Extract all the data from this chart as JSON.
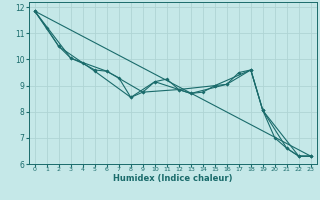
{
  "xlabel": "Humidex (Indice chaleur)",
  "bg_color": "#c5e8e8",
  "grid_color": "#afd4d4",
  "line_color": "#1a6b6b",
  "xlim": [
    -0.5,
    23.5
  ],
  "ylim": [
    6,
    12.2
  ],
  "xticks": [
    0,
    1,
    2,
    3,
    4,
    5,
    6,
    7,
    8,
    9,
    10,
    11,
    12,
    13,
    14,
    15,
    16,
    17,
    18,
    19,
    20,
    21,
    22,
    23
  ],
  "yticks": [
    6,
    7,
    8,
    9,
    10,
    11,
    12
  ],
  "series_main": [
    [
      0,
      11.85
    ],
    [
      1,
      11.2
    ],
    [
      2,
      10.5
    ],
    [
      3,
      10.05
    ],
    [
      4,
      9.85
    ],
    [
      5,
      9.6
    ],
    [
      6,
      9.55
    ],
    [
      7,
      9.3
    ],
    [
      8,
      8.55
    ],
    [
      9,
      8.75
    ],
    [
      10,
      9.15
    ],
    [
      11,
      9.25
    ],
    [
      12,
      8.85
    ],
    [
      13,
      8.7
    ],
    [
      14,
      8.75
    ],
    [
      15,
      9.0
    ],
    [
      16,
      9.05
    ],
    [
      17,
      9.5
    ],
    [
      18,
      9.6
    ],
    [
      19,
      8.05
    ],
    [
      20,
      7.0
    ],
    [
      21,
      6.6
    ],
    [
      22,
      6.3
    ],
    [
      23,
      6.3
    ]
  ],
  "series_smooth": [
    [
      0,
      11.85
    ],
    [
      2,
      10.5
    ],
    [
      5,
      9.55
    ],
    [
      8,
      8.55
    ],
    [
      10,
      9.15
    ],
    [
      13,
      8.7
    ],
    [
      16,
      9.05
    ],
    [
      18,
      9.6
    ],
    [
      19,
      8.05
    ],
    [
      21,
      6.6
    ],
    [
      22,
      6.3
    ],
    [
      23,
      6.3
    ]
  ],
  "series_trend1": [
    [
      0,
      11.85
    ],
    [
      3,
      10.05
    ],
    [
      6,
      9.55
    ],
    [
      9,
      8.75
    ],
    [
      12,
      8.85
    ],
    [
      15,
      9.0
    ],
    [
      18,
      9.6
    ],
    [
      19,
      8.05
    ],
    [
      22,
      6.3
    ],
    [
      23,
      6.3
    ]
  ],
  "series_line": [
    [
      0,
      11.85
    ],
    [
      23,
      6.3
    ]
  ]
}
